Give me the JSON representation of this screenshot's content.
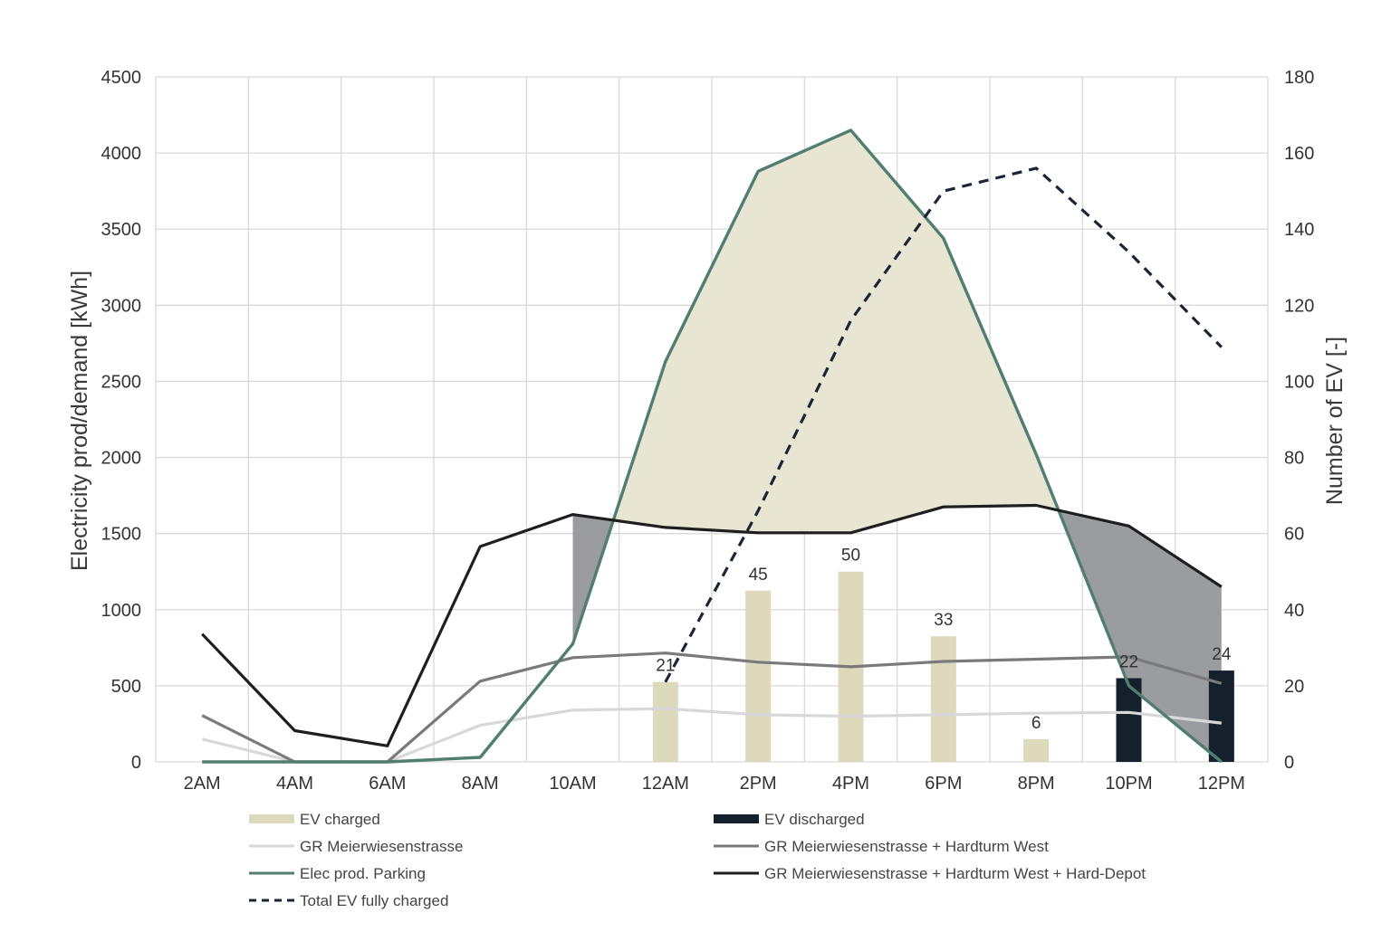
{
  "chart_data": {
    "type": "line",
    "categories": [
      "2AM",
      "4AM",
      "6AM",
      "8AM",
      "10AM",
      "12AM",
      "2PM",
      "4PM",
      "6PM",
      "8PM",
      "10PM",
      "12PM"
    ],
    "y_left": {
      "label": "Electricity prod/demand [kWh]",
      "range": [
        0,
        4500
      ],
      "ticks": [
        "0",
        "500",
        "1000",
        "1500",
        "2000",
        "2500",
        "3000",
        "3500",
        "4000",
        "4500"
      ]
    },
    "y_right": {
      "label": "Number of EV [-]",
      "range": [
        0,
        180
      ],
      "ticks": [
        "0",
        "20",
        "40",
        "60",
        "80",
        "100",
        "120",
        "140",
        "160",
        "180"
      ]
    },
    "grid": true,
    "legend_position": "bottom",
    "colors": {
      "ev_charged": "#dcd9bd",
      "ev_discharged": "#14202c",
      "gr_meier": "#d8d8d8",
      "gr_meier_hardturm": "#7a7a7a",
      "elec_prod": "#527d71",
      "gr_all": "#1e1e1e",
      "total_ev": "#1b2535",
      "surplus_fill": "#e8e6d2",
      "deficit_fill": "#9a9ca0",
      "grid": "#d9d9d9"
    },
    "bars": [
      {
        "name": "EV charged",
        "axis": "right",
        "values": [
          null,
          null,
          null,
          null,
          null,
          21,
          45,
          50,
          33,
          6,
          null,
          null
        ],
        "labels": [
          "",
          "",
          "",
          "",
          "",
          "21",
          "45",
          "50",
          "33",
          "6",
          "",
          ""
        ]
      },
      {
        "name": "EV discharged",
        "axis": "right",
        "values": [
          null,
          null,
          null,
          null,
          null,
          null,
          null,
          null,
          null,
          null,
          22,
          24
        ],
        "labels": [
          "",
          "",
          "",
          "",
          "",
          "",
          "",
          "",
          "",
          "",
          "22",
          "24"
        ]
      }
    ],
    "series": [
      {
        "name": "GR Meierwiesenstrasse",
        "axis": "left",
        "values": [
          150,
          0,
          0,
          240,
          340,
          350,
          310,
          300,
          310,
          320,
          325,
          255
        ]
      },
      {
        "name": "GR Meierwiesenstrasse + Hardturm West",
        "axis": "left",
        "values": [
          305,
          0,
          0,
          530,
          685,
          715,
          655,
          625,
          660,
          675,
          690,
          515
        ]
      },
      {
        "name": "Elec prod. Parking",
        "axis": "left",
        "values": [
          0,
          0,
          0,
          30,
          775,
          2630,
          3880,
          4150,
          3440,
          2020,
          500,
          0
        ]
      },
      {
        "name": "GR Meierwiesenstrasse + Hardturm West + Hard-Depot",
        "axis": "left",
        "values": [
          840,
          205,
          105,
          1415,
          1625,
          1540,
          1505,
          1505,
          1675,
          1685,
          1550,
          1150
        ]
      },
      {
        "name": "Total EV fully charged",
        "axis": "right",
        "values": [
          null,
          null,
          null,
          null,
          null,
          21,
          66,
          116,
          150,
          156,
          134,
          109
        ]
      }
    ],
    "legend": {
      "ev_charged": "EV charged",
      "ev_discharged": "EV discharged",
      "gr_meier": "GR Meierwiesenstrasse",
      "gr_meier_hardturm": "GR Meierwiesenstrasse + Hardturm West",
      "elec_prod": "Elec prod. Parking",
      "gr_all": "GR Meierwiesenstrasse + Hardturm West + Hard-Depot",
      "total_ev": "Total EV fully charged"
    }
  }
}
